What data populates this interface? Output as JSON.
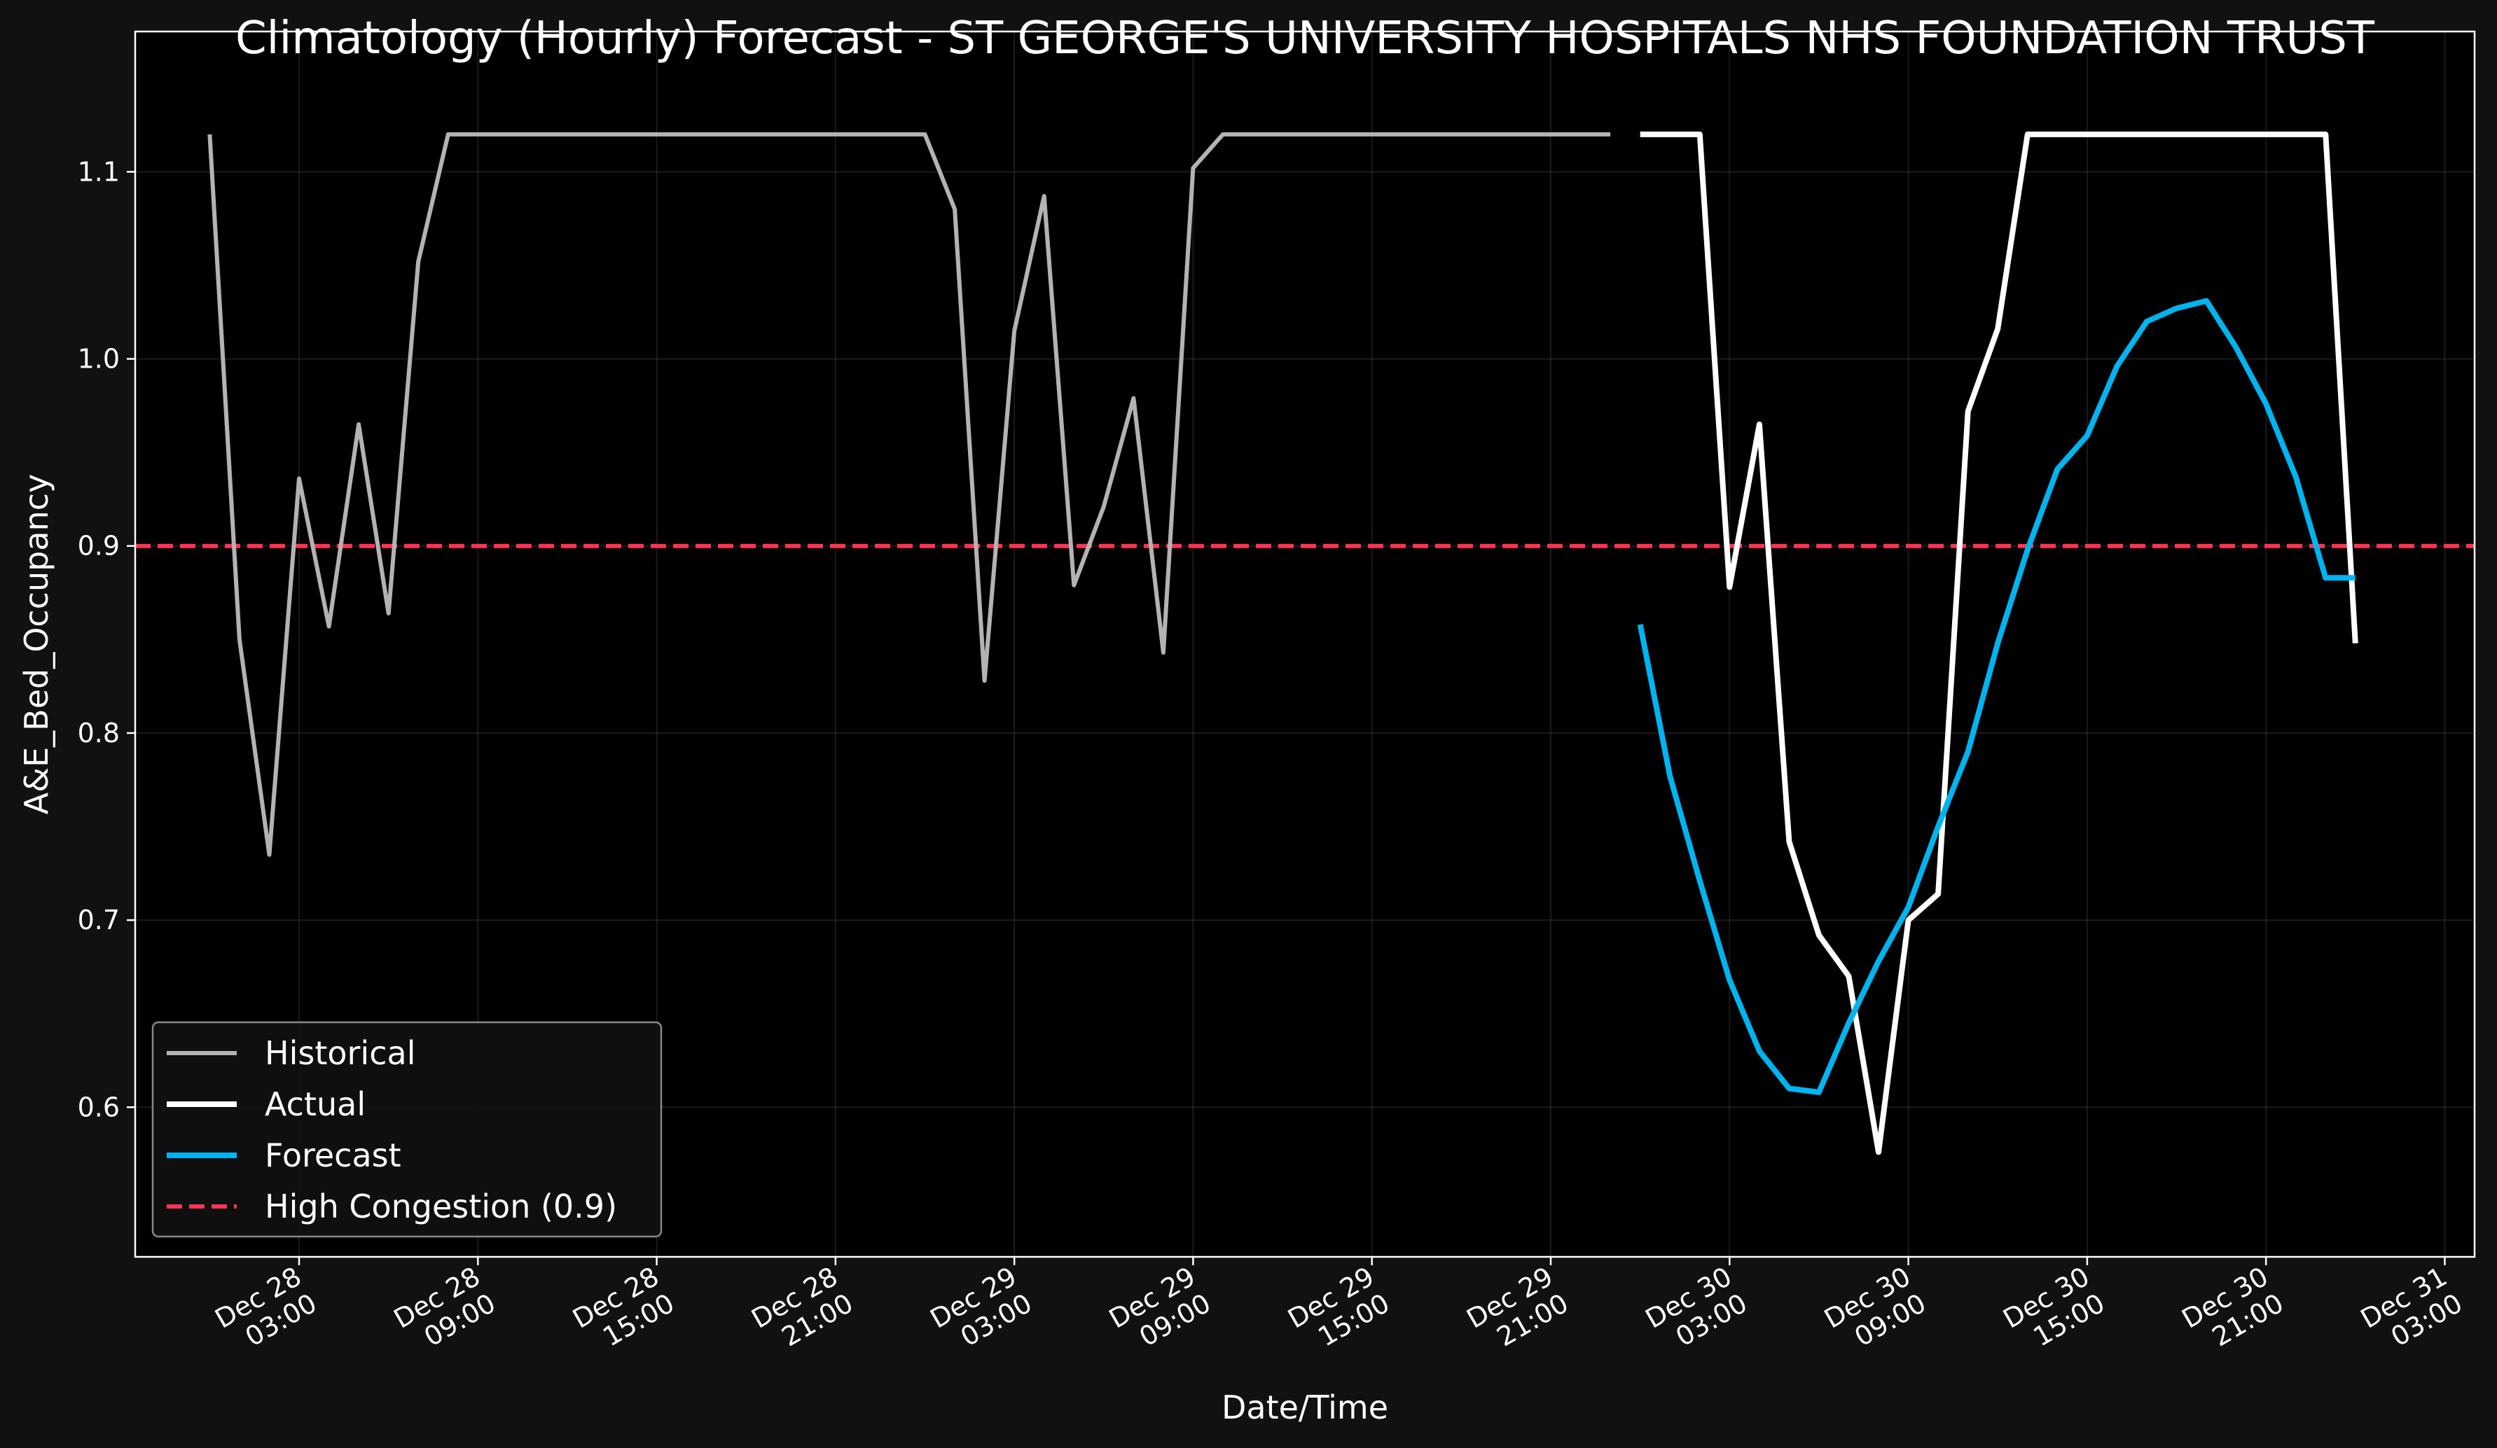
{
  "chart_data": {
    "type": "line",
    "title": "Climatology (Hourly) Forecast - ST GEORGE'S UNIVERSITY HOSPITALS NHS FOUNDATION TRUST",
    "xlabel": "Date/Time",
    "ylabel": "A&E_Bed_Occupancy",
    "xlim": [
      "2023-12-27 21:30",
      "2023-12-31 04:00"
    ],
    "ylim": [
      0.52,
      1.175
    ],
    "x_ticks": [
      {
        "t": "2023-12-28 03:00",
        "label": [
          "Dec 28",
          "03:00"
        ]
      },
      {
        "t": "2023-12-28 09:00",
        "label": [
          "Dec 28",
          "09:00"
        ]
      },
      {
        "t": "2023-12-28 15:00",
        "label": [
          "Dec 28",
          "15:00"
        ]
      },
      {
        "t": "2023-12-28 21:00",
        "label": [
          "Dec 28",
          "21:00"
        ]
      },
      {
        "t": "2023-12-29 03:00",
        "label": [
          "Dec 29",
          "03:00"
        ]
      },
      {
        "t": "2023-12-29 09:00",
        "label": [
          "Dec 29",
          "09:00"
        ]
      },
      {
        "t": "2023-12-29 15:00",
        "label": [
          "Dec 29",
          "15:00"
        ]
      },
      {
        "t": "2023-12-29 21:00",
        "label": [
          "Dec 29",
          "21:00"
        ]
      },
      {
        "t": "2023-12-30 03:00",
        "label": [
          "Dec 30",
          "03:00"
        ]
      },
      {
        "t": "2023-12-30 09:00",
        "label": [
          "Dec 30",
          "09:00"
        ]
      },
      {
        "t": "2023-12-30 15:00",
        "label": [
          "Dec 30",
          "15:00"
        ]
      },
      {
        "t": "2023-12-30 21:00",
        "label": [
          "Dec 30",
          "21:00"
        ]
      },
      {
        "t": "2023-12-31 03:00",
        "label": [
          "Dec 31",
          "03:00"
        ]
      }
    ],
    "y_ticks": [
      0.6,
      0.7,
      0.8,
      0.9,
      1.0,
      1.1
    ],
    "grid": true,
    "legend_position": "lower-left",
    "threshold": {
      "name": "High Congestion (0.9)",
      "y": 0.9,
      "color": "#ff3355",
      "style": "dashed"
    },
    "series": [
      {
        "name": "Historical",
        "color": "#b3b3b3",
        "x": [
          "2023-12-28 00:00",
          "2023-12-28 01:00",
          "2023-12-28 02:00",
          "2023-12-28 03:00",
          "2023-12-28 04:00",
          "2023-12-28 05:00",
          "2023-12-28 06:00",
          "2023-12-28 07:00",
          "2023-12-28 08:00",
          "2023-12-28 09:00",
          "2023-12-28 10:00",
          "2023-12-28 11:00",
          "2023-12-28 12:00",
          "2023-12-28 13:00",
          "2023-12-28 14:00",
          "2023-12-28 15:00",
          "2023-12-28 16:00",
          "2023-12-28 17:00",
          "2023-12-28 18:00",
          "2023-12-28 19:00",
          "2023-12-28 20:00",
          "2023-12-28 21:00",
          "2023-12-28 22:00",
          "2023-12-28 23:00",
          "2023-12-29 00:00",
          "2023-12-29 01:00",
          "2023-12-29 02:00",
          "2023-12-29 03:00",
          "2023-12-29 04:00",
          "2023-12-29 05:00",
          "2023-12-29 06:00",
          "2023-12-29 07:00",
          "2023-12-29 08:00",
          "2023-12-29 09:00",
          "2023-12-29 10:00",
          "2023-12-29 11:00",
          "2023-12-29 12:00",
          "2023-12-29 13:00",
          "2023-12-29 14:00",
          "2023-12-29 15:00",
          "2023-12-29 16:00",
          "2023-12-29 17:00",
          "2023-12-29 18:00",
          "2023-12-29 19:00",
          "2023-12-29 20:00",
          "2023-12-29 21:00",
          "2023-12-29 22:00",
          "2023-12-29 23:00"
        ],
        "y": [
          1.12,
          0.85,
          0.735,
          0.936,
          0.857,
          0.965,
          0.864,
          1.052,
          1.12,
          1.12,
          1.12,
          1.12,
          1.12,
          1.12,
          1.12,
          1.12,
          1.12,
          1.12,
          1.12,
          1.12,
          1.12,
          1.12,
          1.12,
          1.12,
          1.12,
          1.08,
          0.828,
          1.015,
          1.087,
          0.879,
          0.921,
          0.979,
          0.843,
          1.102,
          1.12,
          1.12,
          1.12,
          1.12,
          1.12,
          1.12,
          1.12,
          1.12,
          1.12,
          1.12,
          1.12,
          1.12,
          1.12,
          1.12
        ]
      },
      {
        "name": "Actual",
        "color": "#ffffff",
        "x": [
          "2023-12-30 00:00",
          "2023-12-30 01:00",
          "2023-12-30 02:00",
          "2023-12-30 03:00",
          "2023-12-30 04:00",
          "2023-12-30 05:00",
          "2023-12-30 06:00",
          "2023-12-30 07:00",
          "2023-12-30 08:00",
          "2023-12-30 09:00",
          "2023-12-30 10:00",
          "2023-12-30 11:00",
          "2023-12-30 12:00",
          "2023-12-30 13:00",
          "2023-12-30 14:00",
          "2023-12-30 15:00",
          "2023-12-30 16:00",
          "2023-12-30 17:00",
          "2023-12-30 18:00",
          "2023-12-30 19:00",
          "2023-12-30 20:00",
          "2023-12-30 21:00",
          "2023-12-30 22:00",
          "2023-12-30 23:00",
          "2023-12-31 00:00"
        ],
        "y": [
          1.12,
          1.12,
          1.12,
          0.878,
          0.965,
          0.742,
          0.692,
          0.67,
          0.576,
          0.7,
          0.714,
          0.972,
          1.016,
          1.12,
          1.12,
          1.12,
          1.12,
          1.12,
          1.12,
          1.12,
          1.12,
          1.12,
          1.12,
          1.12,
          0.848
        ]
      },
      {
        "name": "Forecast",
        "color": "#00b4f0",
        "x": [
          "2023-12-30 00:00",
          "2023-12-30 01:00",
          "2023-12-30 02:00",
          "2023-12-30 03:00",
          "2023-12-30 04:00",
          "2023-12-30 05:00",
          "2023-12-30 06:00",
          "2023-12-30 07:00",
          "2023-12-30 08:00",
          "2023-12-30 09:00",
          "2023-12-30 10:00",
          "2023-12-30 11:00",
          "2023-12-30 12:00",
          "2023-12-30 13:00",
          "2023-12-30 14:00",
          "2023-12-30 15:00",
          "2023-12-30 16:00",
          "2023-12-30 17:00",
          "2023-12-30 18:00",
          "2023-12-30 19:00",
          "2023-12-30 20:00",
          "2023-12-30 21:00",
          "2023-12-30 22:00",
          "2023-12-30 23:00",
          "2023-12-31 00:00"
        ],
        "y": [
          0.858,
          0.777,
          0.721,
          0.668,
          0.63,
          0.61,
          0.608,
          0.645,
          0.678,
          0.707,
          0.75,
          0.79,
          0.848,
          0.898,
          0.941,
          0.959,
          0.996,
          1.02,
          1.027,
          1.031,
          1.006,
          0.976,
          0.937,
          0.883,
          0.883
        ]
      }
    ]
  }
}
